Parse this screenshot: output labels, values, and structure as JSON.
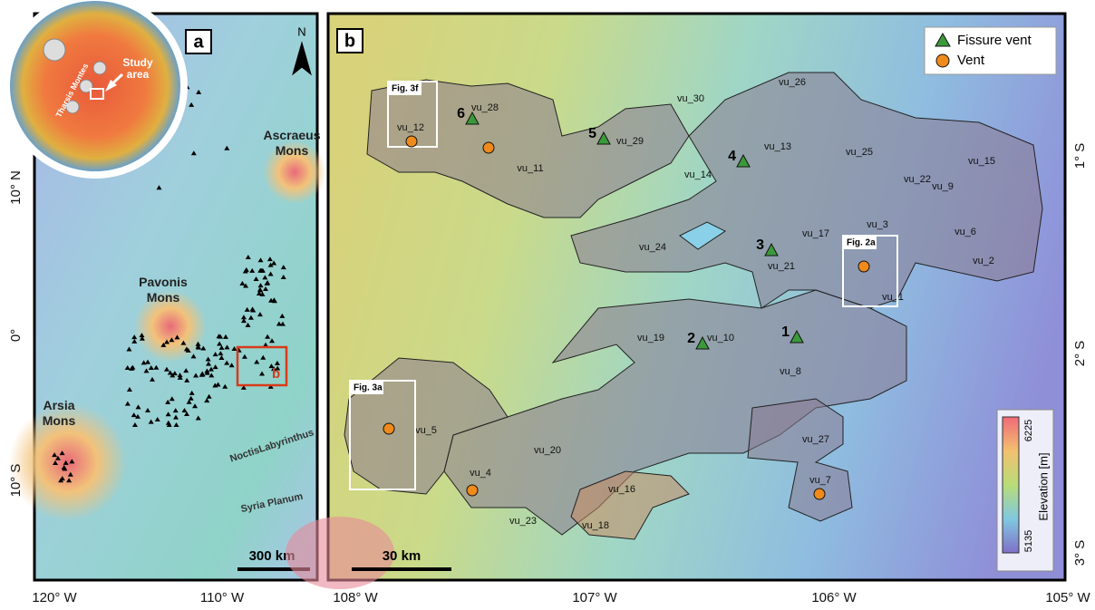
{
  "panel_a": {
    "label": "a",
    "north": "N",
    "inset": {
      "study_area": "Study area",
      "region": "Tharsis Montes"
    },
    "volcanoes": [
      "Ascraeus Mons",
      "Pavonis Mons",
      "Arsia Mons"
    ],
    "box_label": "b",
    "features": [
      "NoctisLabyrinthus",
      "Syria Planum"
    ],
    "scale_bar": "300 km",
    "lat_labels": [
      "10° N",
      "0°",
      "10° S"
    ],
    "lon_labels": [
      "120° W",
      "110° W"
    ]
  },
  "panel_b": {
    "label": "b",
    "legend": {
      "fissure_vent": "Fissure vent",
      "vent": "Vent"
    },
    "units": [
      "vu_1",
      "vu_2",
      "vu_3",
      "vu_4",
      "vu_5",
      "vu_6",
      "vu_7",
      "vu_8",
      "vu_9",
      "vu_10",
      "vu_11",
      "vu_12",
      "vu_13",
      "vu_14",
      "vu_15",
      "vu_16",
      "vu_17",
      "vu_18",
      "vu_19",
      "vu_20",
      "vu_21",
      "vu_22",
      "vu_23",
      "vu_24",
      "vu_25",
      "vu_26",
      "vu_27",
      "vu_28",
      "vu_29",
      "vu_30"
    ],
    "fig_boxes": [
      "Fig. 3f",
      "Fig. 2a",
      "Fig. 3a"
    ],
    "fissure_vents": [
      "1",
      "2",
      "3",
      "4",
      "5",
      "6"
    ],
    "scale_bar": "30 km",
    "colorbar": {
      "max": "6225",
      "min": "5135",
      "title": "Elevation [m]"
    },
    "lon_labels": [
      "108° W",
      "107° W",
      "106° W",
      "105° W"
    ],
    "lat_labels": [
      "1° S",
      "2° S",
      "3° S"
    ]
  }
}
